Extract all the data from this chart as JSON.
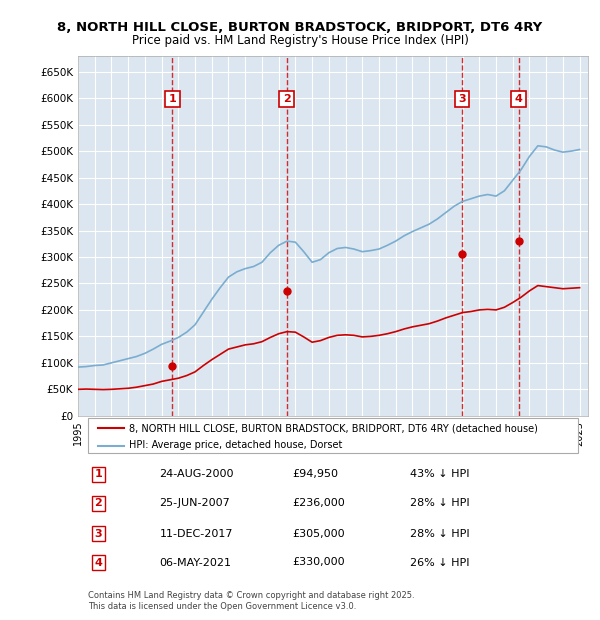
{
  "title": "8, NORTH HILL CLOSE, BURTON BRADSTOCK, BRIDPORT, DT6 4RY",
  "subtitle": "Price paid vs. HM Land Registry's House Price Index (HPI)",
  "ylabel": "",
  "ylim": [
    0,
    680000
  ],
  "yticks": [
    0,
    50000,
    100000,
    150000,
    200000,
    250000,
    300000,
    350000,
    400000,
    450000,
    500000,
    550000,
    600000,
    650000
  ],
  "xlim_start": 1995.0,
  "xlim_end": 2025.5,
  "background_color": "#ffffff",
  "plot_bg_color": "#dce6f0",
  "grid_color": "#ffffff",
  "hpi_color": "#7aadcf",
  "price_color": "#cc0000",
  "sale_marker_color": "#cc0000",
  "vline_color": "#cc0000",
  "purchases": [
    {
      "num": 1,
      "date_str": "24-AUG-2000",
      "date_x": 2000.65,
      "price": 94950,
      "label": "43% ↓ HPI"
    },
    {
      "num": 2,
      "date_str": "25-JUN-2007",
      "date_x": 2007.48,
      "price": 236000,
      "label": "28% ↓ HPI"
    },
    {
      "num": 3,
      "date_str": "11-DEC-2017",
      "date_x": 2017.95,
      "price": 305000,
      "label": "28% ↓ HPI"
    },
    {
      "num": 4,
      "date_str": "06-MAY-2021",
      "date_x": 2021.35,
      "price": 330000,
      "label": "26% ↓ HPI"
    }
  ],
  "hpi_data": {
    "x": [
      1995.0,
      1995.5,
      1996.0,
      1996.5,
      1997.0,
      1997.5,
      1998.0,
      1998.5,
      1999.0,
      1999.5,
      2000.0,
      2000.5,
      2001.0,
      2001.5,
      2002.0,
      2002.5,
      2003.0,
      2003.5,
      2004.0,
      2004.5,
      2005.0,
      2005.5,
      2006.0,
      2006.5,
      2007.0,
      2007.5,
      2008.0,
      2008.5,
      2009.0,
      2009.5,
      2010.0,
      2010.5,
      2011.0,
      2011.5,
      2012.0,
      2012.5,
      2013.0,
      2013.5,
      2014.0,
      2014.5,
      2015.0,
      2015.5,
      2016.0,
      2016.5,
      2017.0,
      2017.5,
      2018.0,
      2018.5,
      2019.0,
      2019.5,
      2020.0,
      2020.5,
      2021.0,
      2021.5,
      2022.0,
      2022.5,
      2023.0,
      2023.5,
      2024.0,
      2024.5,
      2025.0
    ],
    "y": [
      92000,
      93000,
      95000,
      96000,
      100000,
      104000,
      108000,
      112000,
      118000,
      126000,
      135000,
      141000,
      148000,
      158000,
      172000,
      196000,
      220000,
      242000,
      262000,
      272000,
      278000,
      282000,
      290000,
      308000,
      322000,
      330000,
      328000,
      310000,
      290000,
      295000,
      308000,
      316000,
      318000,
      315000,
      310000,
      312000,
      315000,
      322000,
      330000,
      340000,
      348000,
      355000,
      362000,
      372000,
      384000,
      396000,
      405000,
      410000,
      415000,
      418000,
      415000,
      425000,
      445000,
      465000,
      490000,
      510000,
      508000,
      502000,
      498000,
      500000,
      503000
    ]
  },
  "price_index_data": {
    "x": [
      1995.0,
      1995.5,
      1996.0,
      1996.5,
      1997.0,
      1997.5,
      1998.0,
      1998.5,
      1999.0,
      1999.5,
      2000.0,
      2000.5,
      2001.0,
      2001.5,
      2002.0,
      2002.5,
      2003.0,
      2003.5,
      2004.0,
      2004.5,
      2005.0,
      2005.5,
      2006.0,
      2006.5,
      2007.0,
      2007.5,
      2008.0,
      2008.5,
      2009.0,
      2009.5,
      2010.0,
      2010.5,
      2011.0,
      2011.5,
      2012.0,
      2012.5,
      2013.0,
      2013.5,
      2014.0,
      2014.5,
      2015.0,
      2015.5,
      2016.0,
      2016.5,
      2017.0,
      2017.5,
      2018.0,
      2018.5,
      2019.0,
      2019.5,
      2020.0,
      2020.5,
      2021.0,
      2021.5,
      2022.0,
      2022.5,
      2023.0,
      2023.5,
      2024.0,
      2024.5,
      2025.0
    ],
    "y": [
      50000,
      50500,
      50000,
      49500,
      50000,
      51000,
      52000,
      54000,
      57000,
      60000,
      65000,
      68000,
      71000,
      76000,
      83000,
      95000,
      106000,
      116000,
      126000,
      130000,
      134000,
      136000,
      140000,
      148000,
      155000,
      159000,
      158000,
      149000,
      139000,
      142000,
      148000,
      152000,
      153000,
      152000,
      149000,
      150000,
      152000,
      155000,
      159000,
      164000,
      168000,
      171000,
      174000,
      179000,
      185000,
      190000,
      195000,
      197000,
      200000,
      201000,
      200000,
      205000,
      214000,
      224000,
      236000,
      246000,
      244000,
      242000,
      240000,
      241000,
      242000
    ]
  },
  "legend_label_red": "8, NORTH HILL CLOSE, BURTON BRADSTOCK, BRIDPORT, DT6 4RY (detached house)",
  "legend_label_blue": "HPI: Average price, detached house, Dorset",
  "table_data": [
    [
      "1",
      "24-AUG-2000",
      "£94,950",
      "43% ↓ HPI"
    ],
    [
      "2",
      "25-JUN-2007",
      "£236,000",
      "28% ↓ HPI"
    ],
    [
      "3",
      "11-DEC-2017",
      "£305,000",
      "28% ↓ HPI"
    ],
    [
      "4",
      "06-MAY-2021",
      "£330,000",
      "26% ↓ HPI"
    ]
  ],
  "footer": "Contains HM Land Registry data © Crown copyright and database right 2025.\nThis data is licensed under the Open Government Licence v3.0.",
  "xtick_years": [
    1995,
    1996,
    1997,
    1998,
    1999,
    2000,
    2001,
    2002,
    2003,
    2004,
    2005,
    2006,
    2007,
    2008,
    2009,
    2010,
    2011,
    2012,
    2013,
    2014,
    2015,
    2016,
    2017,
    2018,
    2019,
    2020,
    2021,
    2022,
    2023,
    2024,
    2025
  ]
}
